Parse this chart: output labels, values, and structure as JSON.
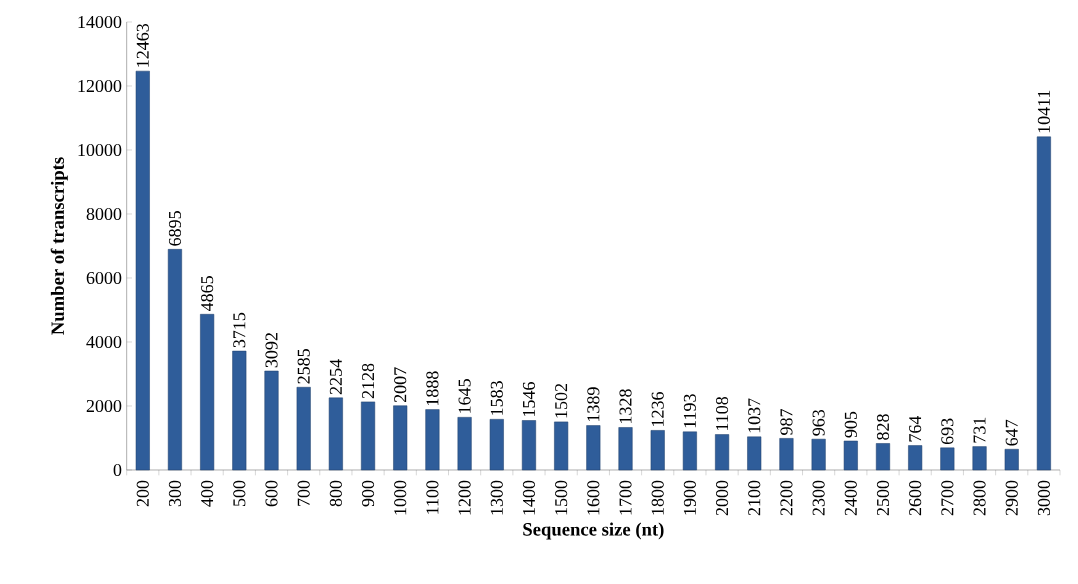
{
  "chart_data": {
    "type": "bar",
    "xlabel": "Sequence size (nt)",
    "ylabel": "Number of transcripts",
    "categories": [
      "200",
      "300",
      "400",
      "500",
      "600",
      "700",
      "800",
      "900",
      "1000",
      "1100",
      "1200",
      "1300",
      "1400",
      "1500",
      "1600",
      "1700",
      "1800",
      "1900",
      "2000",
      "2100",
      "2200",
      "2300",
      "2400",
      "2500",
      "2600",
      "2700",
      "2800",
      "2900",
      "3000"
    ],
    "values": [
      12463,
      6895,
      4865,
      3715,
      3092,
      2585,
      2254,
      2128,
      2007,
      1888,
      1645,
      1583,
      1546,
      1502,
      1389,
      1328,
      1236,
      1193,
      1108,
      1037,
      987,
      963,
      905,
      828,
      764,
      693,
      731,
      647,
      10411
    ],
    "color": "#2f5d9a",
    "ylim": [
      0,
      14000
    ],
    "yticks": [
      0,
      2000,
      4000,
      6000,
      8000,
      10000,
      12000,
      14000
    ],
    "data_labels": true,
    "grid": false
  }
}
